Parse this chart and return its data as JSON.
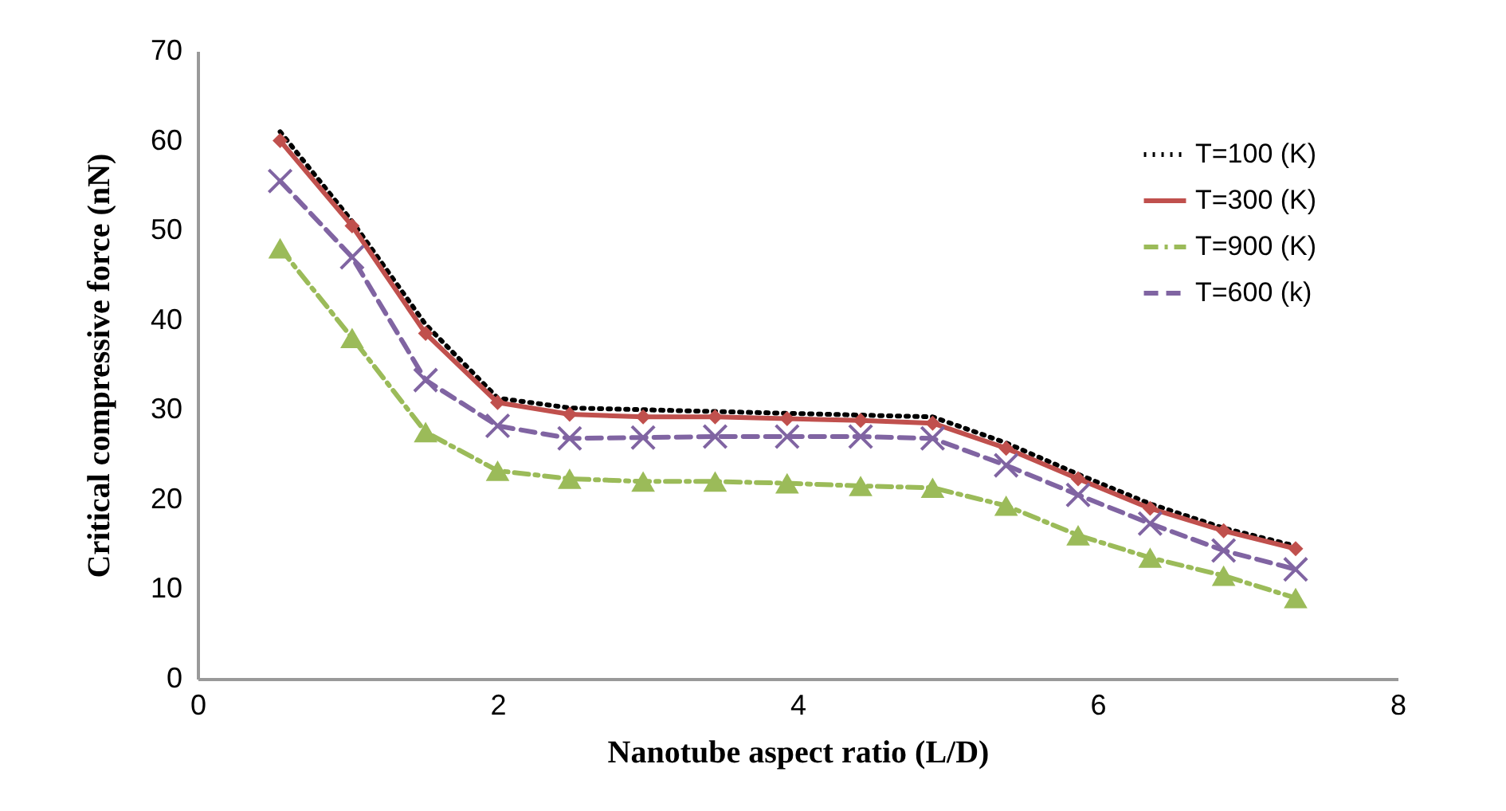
{
  "chart_data": {
    "type": "line",
    "xlabel": "Nanotube aspect ratio (L/D)",
    "ylabel": "Critical compressive force (nN)",
    "x": [
      0.55,
      1.03,
      1.52,
      2.0,
      2.48,
      2.97,
      3.45,
      3.93,
      4.42,
      4.9,
      5.39,
      5.87,
      6.35,
      6.84,
      7.32
    ],
    "series": [
      {
        "name": "T=100 (K)",
        "color": "#000000",
        "marker": "none",
        "line_style": "dotted",
        "values": [
          61,
          51,
          39.5,
          31.3,
          30.2,
          30,
          29.8,
          29.6,
          29.4,
          29.2,
          26.3,
          22.8,
          19.5,
          16.8,
          14.8
        ]
      },
      {
        "name": "T=300 (K)",
        "color": "#c0504d",
        "marker": "diamond",
        "line_style": "solid",
        "values": [
          60,
          50.5,
          38.5,
          30.8,
          29.5,
          29.2,
          29.2,
          29,
          28.8,
          28.5,
          25.7,
          22.3,
          19,
          16.5,
          14.5
        ]
      },
      {
        "name": "T=900 (K)",
        "color": "#9bbb59",
        "marker": "triangle",
        "line_style": "dashdot",
        "values": [
          48,
          38,
          27.5,
          23.2,
          22.3,
          22,
          22,
          21.8,
          21.5,
          21.3,
          19.3,
          16,
          13.5,
          11.5,
          9
        ]
      },
      {
        "name": "T=600 (k)",
        "color": "#8064a2",
        "marker": "cross",
        "line_style": "dashed",
        "values": [
          55.5,
          47,
          33.3,
          28.2,
          26.8,
          26.9,
          27,
          27,
          27,
          26.8,
          23.8,
          20.5,
          17.3,
          14.3,
          12.2
        ]
      }
    ],
    "xlim": [
      0,
      8
    ],
    "xticks": [
      0,
      2,
      4,
      6,
      8
    ],
    "ylim": [
      0,
      70
    ],
    "yticks": [
      0,
      10,
      20,
      30,
      40,
      50,
      60,
      70
    ],
    "grid": false,
    "legend": "top right"
  }
}
